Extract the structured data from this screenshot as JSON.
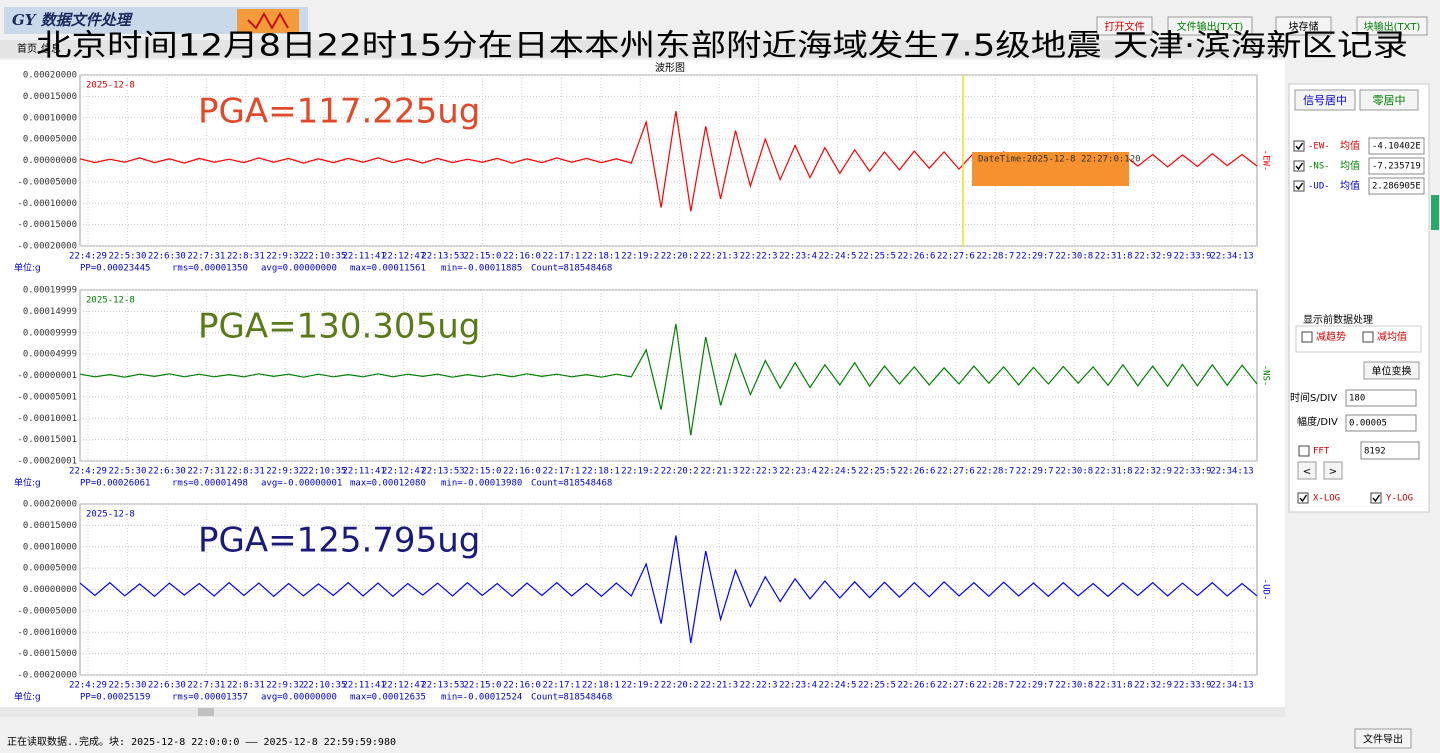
{
  "app": {
    "logo": "GY 数据文件处理",
    "headline": "北京时间12月8日22时15分在日本本州东部附近海域发生7.5级地震 天津·滨海新区记录",
    "tabs": [
      "首页",
      "信息"
    ],
    "buttons": [
      {
        "label": "打开文件",
        "color": "#d40000"
      },
      {
        "label": "文件输出(TXT)",
        "color": "#008000"
      },
      {
        "label": "块存储",
        "color": "#000000"
      },
      {
        "label": "块输出(TXT)",
        "color": "#008000"
      }
    ],
    "chart_title": "波形图",
    "side_panel": {
      "center_buttons": [
        {
          "label": "信号居中",
          "color": "#0000cc"
        },
        {
          "label": "零居中",
          "color": "#008000"
        }
      ],
      "channels": [
        {
          "name": "-EW-",
          "label": "均值",
          "value": "-4.10402E",
          "checked": true,
          "color": "#d40000"
        },
        {
          "name": "-NS-",
          "label": "均值",
          "value": "-7.235719",
          "checked": true,
          "color": "#008000"
        },
        {
          "name": "-UD-",
          "label": "均值",
          "value": "2.286905E",
          "checked": true,
          "color": "#0000cc"
        }
      ],
      "preprocess_title": "显示前数据处理",
      "preprocess": [
        {
          "label": "减趋势",
          "checked": false
        },
        {
          "label": "减均值",
          "checked": false
        }
      ],
      "unit_button": "单位变换",
      "time_div_label": "时间S/DIV",
      "time_div": 180,
      "amp_div_label": "幅度/DIV",
      "amp_div": 5e-05,
      "fft": {
        "label": "FFT",
        "checked": false
      },
      "fft_size": 8192,
      "nav": [
        "<",
        ">"
      ],
      "log": [
        {
          "label": "X-LOG",
          "checked": true
        },
        {
          "label": "Y-LOG",
          "checked": true
        }
      ]
    },
    "status": "正在读取数据..完成。块: 2025-12-8 22:0:0:0 —— 2025-12-8 22:59:59:980",
    "export_button": "文件导出"
  },
  "chart_data": [
    {
      "type": "line",
      "date_label": "2025-12-8",
      "date_color": "#d40000",
      "annotation": "PGA=117.225ug",
      "annotation_color": "#e04a2a",
      "unit_label": "单位:g",
      "grid": true,
      "stats": [
        "PP=0.00023445",
        "rms=0.00001350",
        "avg=0.00000000",
        "max=0.00011561",
        "min=-0.00011885",
        "Count=818548468"
      ],
      "ylim": [
        -0.0002,
        0.0002
      ],
      "yticks": [
        {
          "value": 0.0002,
          "label": "0.00020000"
        },
        {
          "value": 0.00015,
          "label": "0.00015000"
        },
        {
          "value": 0.0001,
          "label": "0.00010000"
        },
        {
          "value": 5e-05,
          "label": "0.00005000"
        },
        {
          "value": 0,
          "label": "0.00000000"
        },
        {
          "value": -5e-05,
          "label": "-0.00005000"
        },
        {
          "value": -0.0001,
          "label": "-0.00010000"
        },
        {
          "value": -0.00015,
          "label": "-0.00015000"
        },
        {
          "value": -0.0002,
          "label": "-0.00020000"
        }
      ],
      "xtick_labels": [
        "22:4:29",
        "22:5:30",
        "22:6:30",
        "22:7:31",
        "22:8:31",
        "22:9:32",
        "22:10:35",
        "22:11:41",
        "22:12:47",
        "22:13:53",
        "22:15:0",
        "22:16:0",
        "22:17:1",
        "22:18:1",
        "22:19:2",
        "22:20:2",
        "22:21:3",
        "22:22:3",
        "22:23:4",
        "22:24:5",
        "22:25:5",
        "22:26:6",
        "22:27:6",
        "22:28:7",
        "22:29:7",
        "22:30:8",
        "22:31:8",
        "22:32:9",
        "22:33:9",
        "22:34:13"
      ],
      "tooltip": "DateTime:2025-12-8 22:27:0:120",
      "series": [
        {
          "name": "-EW-",
          "color": "#ff0000",
          "values": [
            4e-06,
            -5e-06,
            3e-06,
            -4e-06,
            6e-06,
            -5e-06,
            4e-06,
            -6e-06,
            5e-06,
            -4e-06,
            3e-06,
            -5e-06,
            6e-06,
            -4e-06,
            5e-06,
            -6e-06,
            4e-06,
            -5e-06,
            5e-06,
            -4e-06,
            6e-06,
            -5e-06,
            4e-06,
            -6e-06,
            5e-06,
            -5e-06,
            3e-06,
            -4e-06,
            5e-06,
            -6e-06,
            4e-06,
            -5e-06,
            6e-06,
            -4e-06,
            5e-06,
            -5e-06,
            4e-06,
            -6e-06,
            9e-05,
            -0.00011,
            0.00011561,
            -0.00011885,
            8e-05,
            -9e-05,
            7e-05,
            -6e-05,
            5e-05,
            -4.5e-05,
            3.5e-05,
            -4e-05,
            3e-05,
            -3e-05,
            2.5e-05,
            -2.5e-05,
            2e-05,
            -2.2e-05,
            2.2e-05,
            -1.8e-05,
            2e-05,
            -2e-05,
            1.8e-05,
            -1.6e-05,
            2e-05,
            -1.8e-05,
            1.5e-05,
            -1.7e-05,
            1.6e-05,
            -1.5e-05,
            1.4e-05,
            -1.6e-05,
            1.5e-05,
            -1.3e-05,
            1.4e-05,
            -1.5e-05,
            1.3e-05,
            -1.4e-05,
            1.6e-05,
            -1.2e-05,
            1.4e-05,
            -1.3e-05
          ]
        }
      ]
    },
    {
      "type": "line",
      "date_label": "2025-12-8",
      "date_color": "#008000",
      "annotation": "PGA=130.305ug",
      "annotation_color": "#5a7a1a",
      "unit_label": "单位:g",
      "grid": true,
      "stats": [
        "PP=0.00026061",
        "rms=0.00001498",
        "avg=-0.00000001",
        "max=0.00012080",
        "min=-0.00013980",
        "Count=818548468"
      ],
      "ylim": [
        -0.00020001,
        0.00019999
      ],
      "yticks": [
        {
          "value": 0.00019999,
          "label": "0.00019999"
        },
        {
          "value": 0.00014999,
          "label": "0.00014999"
        },
        {
          "value": 9.999e-05,
          "label": "0.00009999"
        },
        {
          "value": 4.999e-05,
          "label": "0.00004999"
        },
        {
          "value": -1e-08,
          "label": "-0.00000001"
        },
        {
          "value": -5.001e-05,
          "label": "-0.00005001"
        },
        {
          "value": -0.00010001,
          "label": "-0.00010001"
        },
        {
          "value": -0.00015001,
          "label": "-0.00015001"
        },
        {
          "value": -0.00020001,
          "label": "-0.00020001"
        }
      ],
      "xtick_labels": [
        "22:4:29",
        "22:5:30",
        "22:6:30",
        "22:7:31",
        "22:8:31",
        "22:9:32",
        "22:10:35",
        "22:11:41",
        "22:12:47",
        "22:13:53",
        "22:15:0",
        "22:16:0",
        "22:17:1",
        "22:18:1",
        "22:19:2",
        "22:20:2",
        "22:21:3",
        "22:22:3",
        "22:23:4",
        "22:24:5",
        "22:25:5",
        "22:26:6",
        "22:27:6",
        "22:28:7",
        "22:29:7",
        "22:30:8",
        "22:31:8",
        "22:32:9",
        "22:33:9",
        "22:34:13"
      ],
      "series": [
        {
          "name": "-NS-",
          "color": "#008000",
          "values": [
            3e-06,
            -3e-06,
            2e-06,
            -4e-06,
            3e-06,
            -2e-06,
            4e-06,
            -3e-06,
            3e-06,
            -3e-06,
            2e-06,
            -3e-06,
            4e-06,
            -2e-06,
            3e-06,
            -4e-06,
            3e-06,
            -3e-06,
            2e-06,
            -3e-06,
            4e-06,
            -3e-06,
            3e-06,
            -2e-06,
            3e-06,
            -4e-06,
            2e-06,
            -3e-06,
            3e-06,
            -3e-06,
            4e-06,
            -2e-06,
            3e-06,
            -3e-06,
            2e-06,
            -4e-06,
            3e-06,
            -3e-06,
            6e-05,
            -8e-05,
            0.0001208,
            -0.0001398,
            9e-05,
            -7e-05,
            5e-05,
            -4.5e-05,
            3.5e-05,
            -3e-05,
            3e-05,
            -2.8e-05,
            2.5e-05,
            -2.2e-05,
            3e-05,
            -2.5e-05,
            2.2e-05,
            -2e-05,
            2e-05,
            -2.2e-05,
            1.8e-05,
            -2e-05,
            2.2e-05,
            -1.8e-05,
            2e-05,
            -2.2e-05,
            1.9e-05,
            -2e-05,
            2.1e-05,
            -1.8e-05,
            2e-05,
            -2.3e-05,
            2.5e-05,
            -2.4e-05,
            2.2e-05,
            -2.5e-05,
            2.6e-05,
            -2.4e-05,
            2.5e-05,
            -2.3e-05,
            2.4e-05,
            -2e-05
          ]
        }
      ]
    },
    {
      "type": "line",
      "date_label": "2025-12-8",
      "date_color": "#0000cc",
      "annotation": "PGA=125.795ug",
      "annotation_color": "#1a1a7a",
      "unit_label": "单位:g",
      "grid": true,
      "stats": [
        "PP=0.00025159",
        "rms=0.00001357",
        "avg=0.00000000",
        "max=0.00012635",
        "min=-0.00012524",
        "Count=818548468"
      ],
      "ylim": [
        -0.0002,
        0.0002
      ],
      "yticks": [
        {
          "value": 0.0002,
          "label": "0.00020000"
        },
        {
          "value": 0.00015,
          "label": "0.00015000"
        },
        {
          "value": 0.0001,
          "label": "0.00010000"
        },
        {
          "value": 5e-05,
          "label": "0.00005000"
        },
        {
          "value": 0,
          "label": "0.00000000"
        },
        {
          "value": -5e-05,
          "label": "-0.00005000"
        },
        {
          "value": -0.0001,
          "label": "-0.00010000"
        },
        {
          "value": -0.00015,
          "label": "-0.00015000"
        },
        {
          "value": -0.0002,
          "label": "-0.00020000"
        }
      ],
      "xtick_labels": [
        "22:4:29",
        "22:5:30",
        "22:6:30",
        "22:7:31",
        "22:8:31",
        "22:9:32",
        "22:10:35",
        "22:11:41",
        "22:12:47",
        "22:13:53",
        "22:15:0",
        "22:16:0",
        "22:17:1",
        "22:18:1",
        "22:19:2",
        "22:20:2",
        "22:21:3",
        "22:22:3",
        "22:23:4",
        "22:24:5",
        "22:25:5",
        "22:26:6",
        "22:27:6",
        "22:28:7",
        "22:29:7",
        "22:30:8",
        "22:31:8",
        "22:32:9",
        "22:33:9",
        "22:34:13"
      ],
      "series": [
        {
          "name": "-UD-",
          "color": "#0000ff",
          "values": [
            1.5e-05,
            -1.4e-05,
            1.6e-05,
            -1.5e-05,
            1.3e-05,
            -1.6e-05,
            1.5e-05,
            -1.3e-05,
            1.4e-05,
            -1.5e-05,
            1.6e-05,
            -1.4e-05,
            1.5e-05,
            -1.6e-05,
            1.4e-05,
            -1.5e-05,
            1.3e-05,
            -1.4e-05,
            1.6e-05,
            -1.5e-05,
            1.5e-05,
            -1.6e-05,
            1.4e-05,
            -1.3e-05,
            1.5e-05,
            -1.5e-05,
            1.6e-05,
            -1.4e-05,
            1.4e-05,
            -1.6e-05,
            1.5e-05,
            -1.4e-05,
            1.6e-05,
            -1.5e-05,
            1.4e-05,
            -1.6e-05,
            1.5e-05,
            -1.5e-05,
            6e-05,
            -8e-05,
            0.00012635,
            -0.00012524,
            9e-05,
            -7e-05,
            4.5e-05,
            -4e-05,
            3e-05,
            -2.8e-05,
            2.5e-05,
            -2.2e-05,
            2e-05,
            -2e-05,
            1.8e-05,
            -1.9e-05,
            1.7e-05,
            -1.8e-05,
            1.6e-05,
            -1.7e-05,
            1.8e-05,
            -1.5e-05,
            1.6e-05,
            -1.6e-05,
            1.7e-05,
            -1.5e-05,
            1.5e-05,
            -1.6e-05,
            1.6e-05,
            -1.5e-05,
            1.4e-05,
            -1.6e-05,
            1.5e-05,
            -1.4e-05,
            1.6e-05,
            -1.5e-05,
            1.5e-05,
            -1.4e-05,
            1.6e-05,
            -1.5e-05,
            1.4e-05,
            -1.5e-05
          ]
        }
      ]
    }
  ]
}
